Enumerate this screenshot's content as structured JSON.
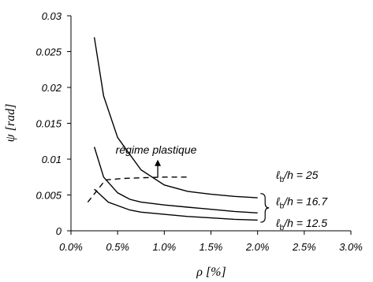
{
  "chart_data": {
    "type": "line",
    "xlabel": "ρ [%]",
    "ylabel": "ψ [rad]",
    "xlim": [
      0,
      0.03
    ],
    "ylim": [
      0,
      0.03
    ],
    "xticks": [
      {
        "value": 0.0,
        "label": "0.0%"
      },
      {
        "value": 0.005,
        "label": "0.5%"
      },
      {
        "value": 0.01,
        "label": "1.0%"
      },
      {
        "value": 0.015,
        "label": "1.5%"
      },
      {
        "value": 0.02,
        "label": "2.0%"
      },
      {
        "value": 0.025,
        "label": "2.5%"
      },
      {
        "value": 0.03,
        "label": "3.0%"
      }
    ],
    "yticks": [
      {
        "value": 0,
        "label": "0"
      },
      {
        "value": 0.005,
        "label": "0.005"
      },
      {
        "value": 0.01,
        "label": "0.01"
      },
      {
        "value": 0.015,
        "label": "0.015"
      },
      {
        "value": 0.02,
        "label": "0.02"
      },
      {
        "value": 0.025,
        "label": "0.025"
      },
      {
        "value": 0.03,
        "label": "0.03"
      }
    ],
    "grid": false,
    "series": [
      {
        "name": "ℓb/h = 25",
        "x": [
          0.0025,
          0.0035,
          0.005,
          0.0075,
          0.01,
          0.0125,
          0.015,
          0.0175,
          0.02
        ],
        "y": [
          0.027,
          0.0188,
          0.013,
          0.0085,
          0.0064,
          0.0055,
          0.0051,
          0.0048,
          0.0046
        ]
      },
      {
        "name": "ℓb/h = 16.7",
        "x": [
          0.0025,
          0.0035,
          0.005,
          0.0063,
          0.0075,
          0.01,
          0.0125,
          0.015,
          0.0175,
          0.02
        ],
        "y": [
          0.0117,
          0.0075,
          0.0053,
          0.0044,
          0.004,
          0.0036,
          0.0033,
          0.003,
          0.0027,
          0.0025
        ]
      },
      {
        "name": "ℓb/h = 12.5",
        "x": [
          0.0025,
          0.004,
          0.0063,
          0.0075,
          0.01,
          0.0125,
          0.015,
          0.0175,
          0.02
        ],
        "y": [
          0.0058,
          0.004,
          0.0029,
          0.0026,
          0.0023,
          0.002,
          0.0018,
          0.0016,
          0.0015
        ]
      }
    ],
    "boundary": {
      "x": [
        0.0018,
        0.0037,
        0.0055,
        0.0075,
        0.01,
        0.0125
      ],
      "y": [
        0.004,
        0.0071,
        0.0073,
        0.0074,
        0.0075,
        0.0075
      ],
      "style": "dashed"
    },
    "annotations": [
      {
        "text": "régime plastique",
        "x": 0.0093,
        "y": 0.0075,
        "arrow": "up"
      }
    ],
    "series_labels": [
      {
        "text": "ℓb/h = 25",
        "x": 0.0208,
        "y": 0.0078
      },
      {
        "text": "ℓb/h = 16.7",
        "x": 0.0208,
        "y": 0.0041
      },
      {
        "text": "ℓb/h = 12.5",
        "x": 0.0208,
        "y": 0.0011
      }
    ]
  }
}
